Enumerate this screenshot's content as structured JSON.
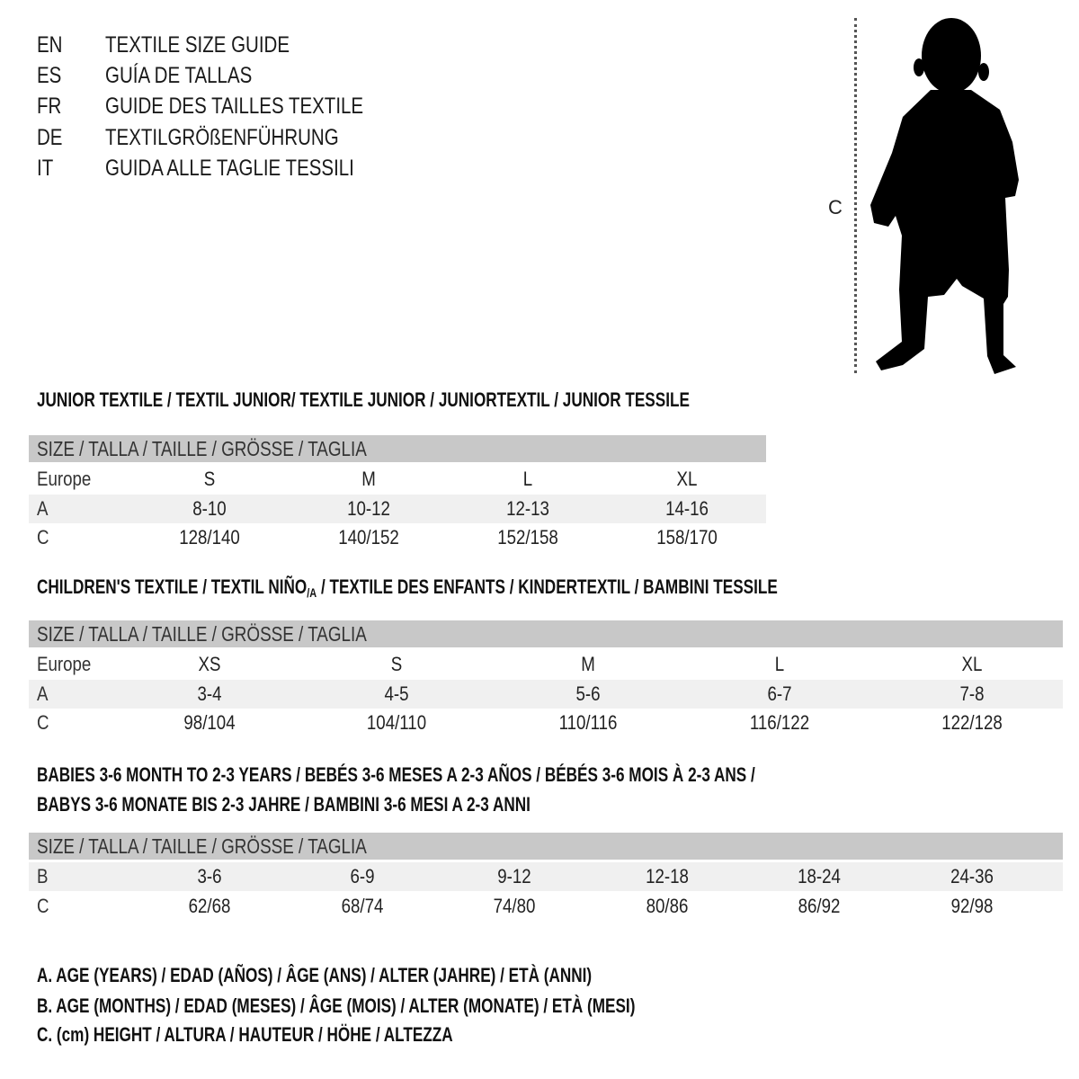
{
  "languages": [
    {
      "code": "EN",
      "title": "TEXTILE SIZE GUIDE"
    },
    {
      "code": "ES",
      "title": "GUÍA DE TALLAS"
    },
    {
      "code": "FR",
      "title": "GUIDE DES TAILLES TEXTILE"
    },
    {
      "code": "DE",
      "title": "TEXTILGRÖßENFÜHRUNG"
    },
    {
      "code": "IT",
      "title": "GUIDA ALLE TAGLIE TESSILI"
    }
  ],
  "figure": {
    "measure_label": "C",
    "icon": "child-silhouette-icon"
  },
  "colors": {
    "header_bg": "#c8c8c8",
    "alt_row_bg": "#f0f0f0",
    "text": "#1a1a1a"
  },
  "sections": [
    {
      "title_parts": [
        "JUNIOR TEXTILE / TEXTIL JUNIOR/ TEXTILE JUNIOR / JUNIORTEXTIL / JUNIOR TESSILE"
      ],
      "header": "SIZE / TALLA / TAILLE / GRÖSSE / TAGLIA",
      "rows": [
        {
          "label": "Europe",
          "values": [
            "S",
            "M",
            "L",
            "XL"
          ]
        },
        {
          "label": "A",
          "values": [
            "8-10",
            "10-12",
            "12-13",
            "14-16"
          ]
        },
        {
          "label": "C",
          "values": [
            "128/140",
            "140/152",
            "152/158",
            "158/170"
          ]
        }
      ]
    },
    {
      "title_parts": [
        "CHILDREN'S TEXTILE / TEXTIL NIÑO",
        "/A",
        " / TEXTILE DES ENFANTS / KINDERTEXTIL / BAMBINI TESSILE"
      ],
      "header": "SIZE / TALLA / TAILLE / GRÖSSE / TAGLIA",
      "rows": [
        {
          "label": "Europe",
          "values": [
            "XS",
            "S",
            "M",
            "L",
            "XL"
          ]
        },
        {
          "label": "A",
          "values": [
            "3-4",
            "4-5",
            "5-6",
            "6-7",
            "7-8"
          ]
        },
        {
          "label": "C",
          "values": [
            "98/104",
            "104/110",
            "110/116",
            "116/122",
            "122/128"
          ]
        }
      ]
    },
    {
      "title_lines": [
        "BABIES 3-6 MONTH TO 2-3 YEARS / BEBÉS 3-6 MESES A 2-3 AÑOS / BÉBÉS 3-6 MOIS À 2-3 ANS /",
        "BABYS 3-6 MONATE BIS 2-3 JAHRE / BAMBINI 3-6 MESI A 2-3 ANNI"
      ],
      "header": "SIZE / TALLA / TAILLE / GRÖSSE / TAGLIA",
      "rows": [
        {
          "label": "B",
          "values": [
            "3-6",
            "6-9",
            "9-12",
            "12-18",
            "18-24",
            "24-36"
          ]
        },
        {
          "label": "C",
          "values": [
            "62/68",
            "68/74",
            "74/80",
            "80/86",
            "86/92",
            "92/98"
          ]
        }
      ]
    }
  ],
  "legend": [
    "A. AGE (YEARS) / EDAD (AÑOS) / ÂGE (ANS) / ALTER (JAHRE) / ETÀ (ANNI)",
    "B. AGE (MONTHS) / EDAD (MESES) / ÂGE (MOIS) / ALTER (MONATE) / ETÀ (MESI)",
    "C. (cm) HEIGHT / ALTURA / HAUTEUR / HÖHE / ALTEZZA"
  ]
}
